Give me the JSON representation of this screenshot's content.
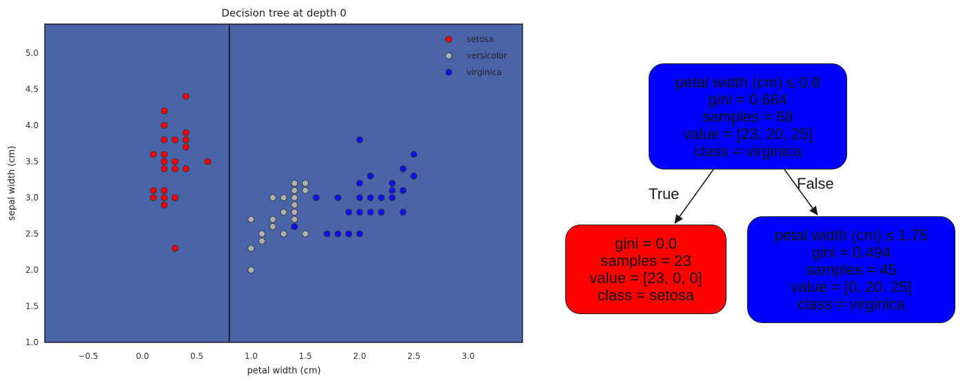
{
  "chart_data": {
    "type": "scatter",
    "title": "Decision tree at depth 0",
    "xlabel": "petal width (cm)",
    "ylabel": "sepal width (cm)",
    "xlim": [
      -0.9,
      3.5
    ],
    "ylim": [
      1.0,
      5.4
    ],
    "xticks": [
      -0.5,
      0.0,
      0.5,
      1.0,
      1.5,
      2.0,
      2.5,
      3.0
    ],
    "xtick_labels": [
      "−0.5",
      "0.0",
      "0.5",
      "1.0",
      "1.5",
      "2.0",
      "2.5",
      "3.0"
    ],
    "yticks": [
      1.0,
      1.5,
      2.0,
      2.5,
      3.0,
      3.5,
      4.0,
      4.5,
      5.0
    ],
    "ytick_labels": [
      "1.0",
      "1.5",
      "2.0",
      "2.5",
      "3.0",
      "3.5",
      "4.0",
      "4.5",
      "5.0"
    ],
    "grid": false,
    "legend_position": "top-right",
    "background_color": "#4a64a8",
    "decision_boundary_x": 0.8,
    "series": [
      {
        "name": "setosa",
        "color": "#ff0000",
        "points": [
          [
            0.1,
            3.6
          ],
          [
            0.2,
            3.6
          ],
          [
            0.1,
            3.1
          ],
          [
            0.2,
            3.1
          ],
          [
            0.1,
            3.0
          ],
          [
            0.2,
            3.0
          ],
          [
            0.2,
            2.9
          ],
          [
            0.3,
            3.0
          ],
          [
            0.2,
            4.2
          ],
          [
            0.2,
            4.0
          ],
          [
            0.4,
            4.4
          ],
          [
            0.2,
            3.8
          ],
          [
            0.3,
            3.8
          ],
          [
            0.4,
            3.9
          ],
          [
            0.4,
            3.8
          ],
          [
            0.4,
            3.7
          ],
          [
            0.2,
            3.5
          ],
          [
            0.3,
            3.5
          ],
          [
            0.2,
            3.4
          ],
          [
            0.3,
            3.4
          ],
          [
            0.4,
            3.4
          ],
          [
            0.6,
            3.5
          ],
          [
            0.3,
            2.3
          ]
        ]
      },
      {
        "name": "versicolor",
        "color": "#b0b0b0",
        "points": [
          [
            1.0,
            2.7
          ],
          [
            1.1,
            2.5
          ],
          [
            1.0,
            2.3
          ],
          [
            1.0,
            2.0
          ],
          [
            1.1,
            2.4
          ],
          [
            1.2,
            3.0
          ],
          [
            1.2,
            2.7
          ],
          [
            1.2,
            2.6
          ],
          [
            1.3,
            3.0
          ],
          [
            1.3,
            2.8
          ],
          [
            1.3,
            2.5
          ],
          [
            1.4,
            3.2
          ],
          [
            1.4,
            3.1
          ],
          [
            1.4,
            3.0
          ],
          [
            1.4,
            2.9
          ],
          [
            1.4,
            2.8
          ],
          [
            1.4,
            2.7
          ],
          [
            1.5,
            3.2
          ],
          [
            1.5,
            3.1
          ],
          [
            1.5,
            2.5
          ]
        ]
      },
      {
        "name": "virginica",
        "color": "#1010ee",
        "points": [
          [
            1.4,
            2.6
          ],
          [
            1.6,
            3.0
          ],
          [
            1.7,
            2.5
          ],
          [
            1.8,
            3.0
          ],
          [
            1.8,
            2.5
          ],
          [
            1.9,
            2.8
          ],
          [
            1.9,
            2.5
          ],
          [
            2.0,
            3.8
          ],
          [
            2.0,
            3.2
          ],
          [
            2.0,
            3.0
          ],
          [
            2.0,
            2.8
          ],
          [
            2.0,
            2.5
          ],
          [
            2.1,
            3.3
          ],
          [
            2.1,
            3.0
          ],
          [
            2.1,
            2.8
          ],
          [
            2.2,
            3.0
          ],
          [
            2.2,
            2.8
          ],
          [
            2.3,
            3.2
          ],
          [
            2.3,
            3.1
          ],
          [
            2.3,
            3.0
          ],
          [
            2.4,
            3.4
          ],
          [
            2.4,
            3.1
          ],
          [
            2.4,
            2.8
          ],
          [
            2.5,
            3.6
          ],
          [
            2.5,
            3.3
          ]
        ]
      }
    ]
  },
  "tree": {
    "root": {
      "fill": "#0000ff",
      "lines": [
        "petal width (cm) ≤ 0.8",
        "gini = 0.664",
        "samples = 68",
        "value = [23, 20, 25]",
        "class = virginica"
      ]
    },
    "left": {
      "fill": "#ff0000",
      "lines": [
        "gini = 0.0",
        "samples = 23",
        "value = [23, 0, 0]",
        "class = setosa"
      ]
    },
    "right": {
      "fill": "#0000ff",
      "lines": [
        "petal width (cm) ≤ 1.75",
        "gini = 0.494",
        "samples = 45",
        "value = [0, 20, 25]",
        "class = virginica"
      ]
    },
    "edge_true": "True",
    "edge_false": "False"
  }
}
